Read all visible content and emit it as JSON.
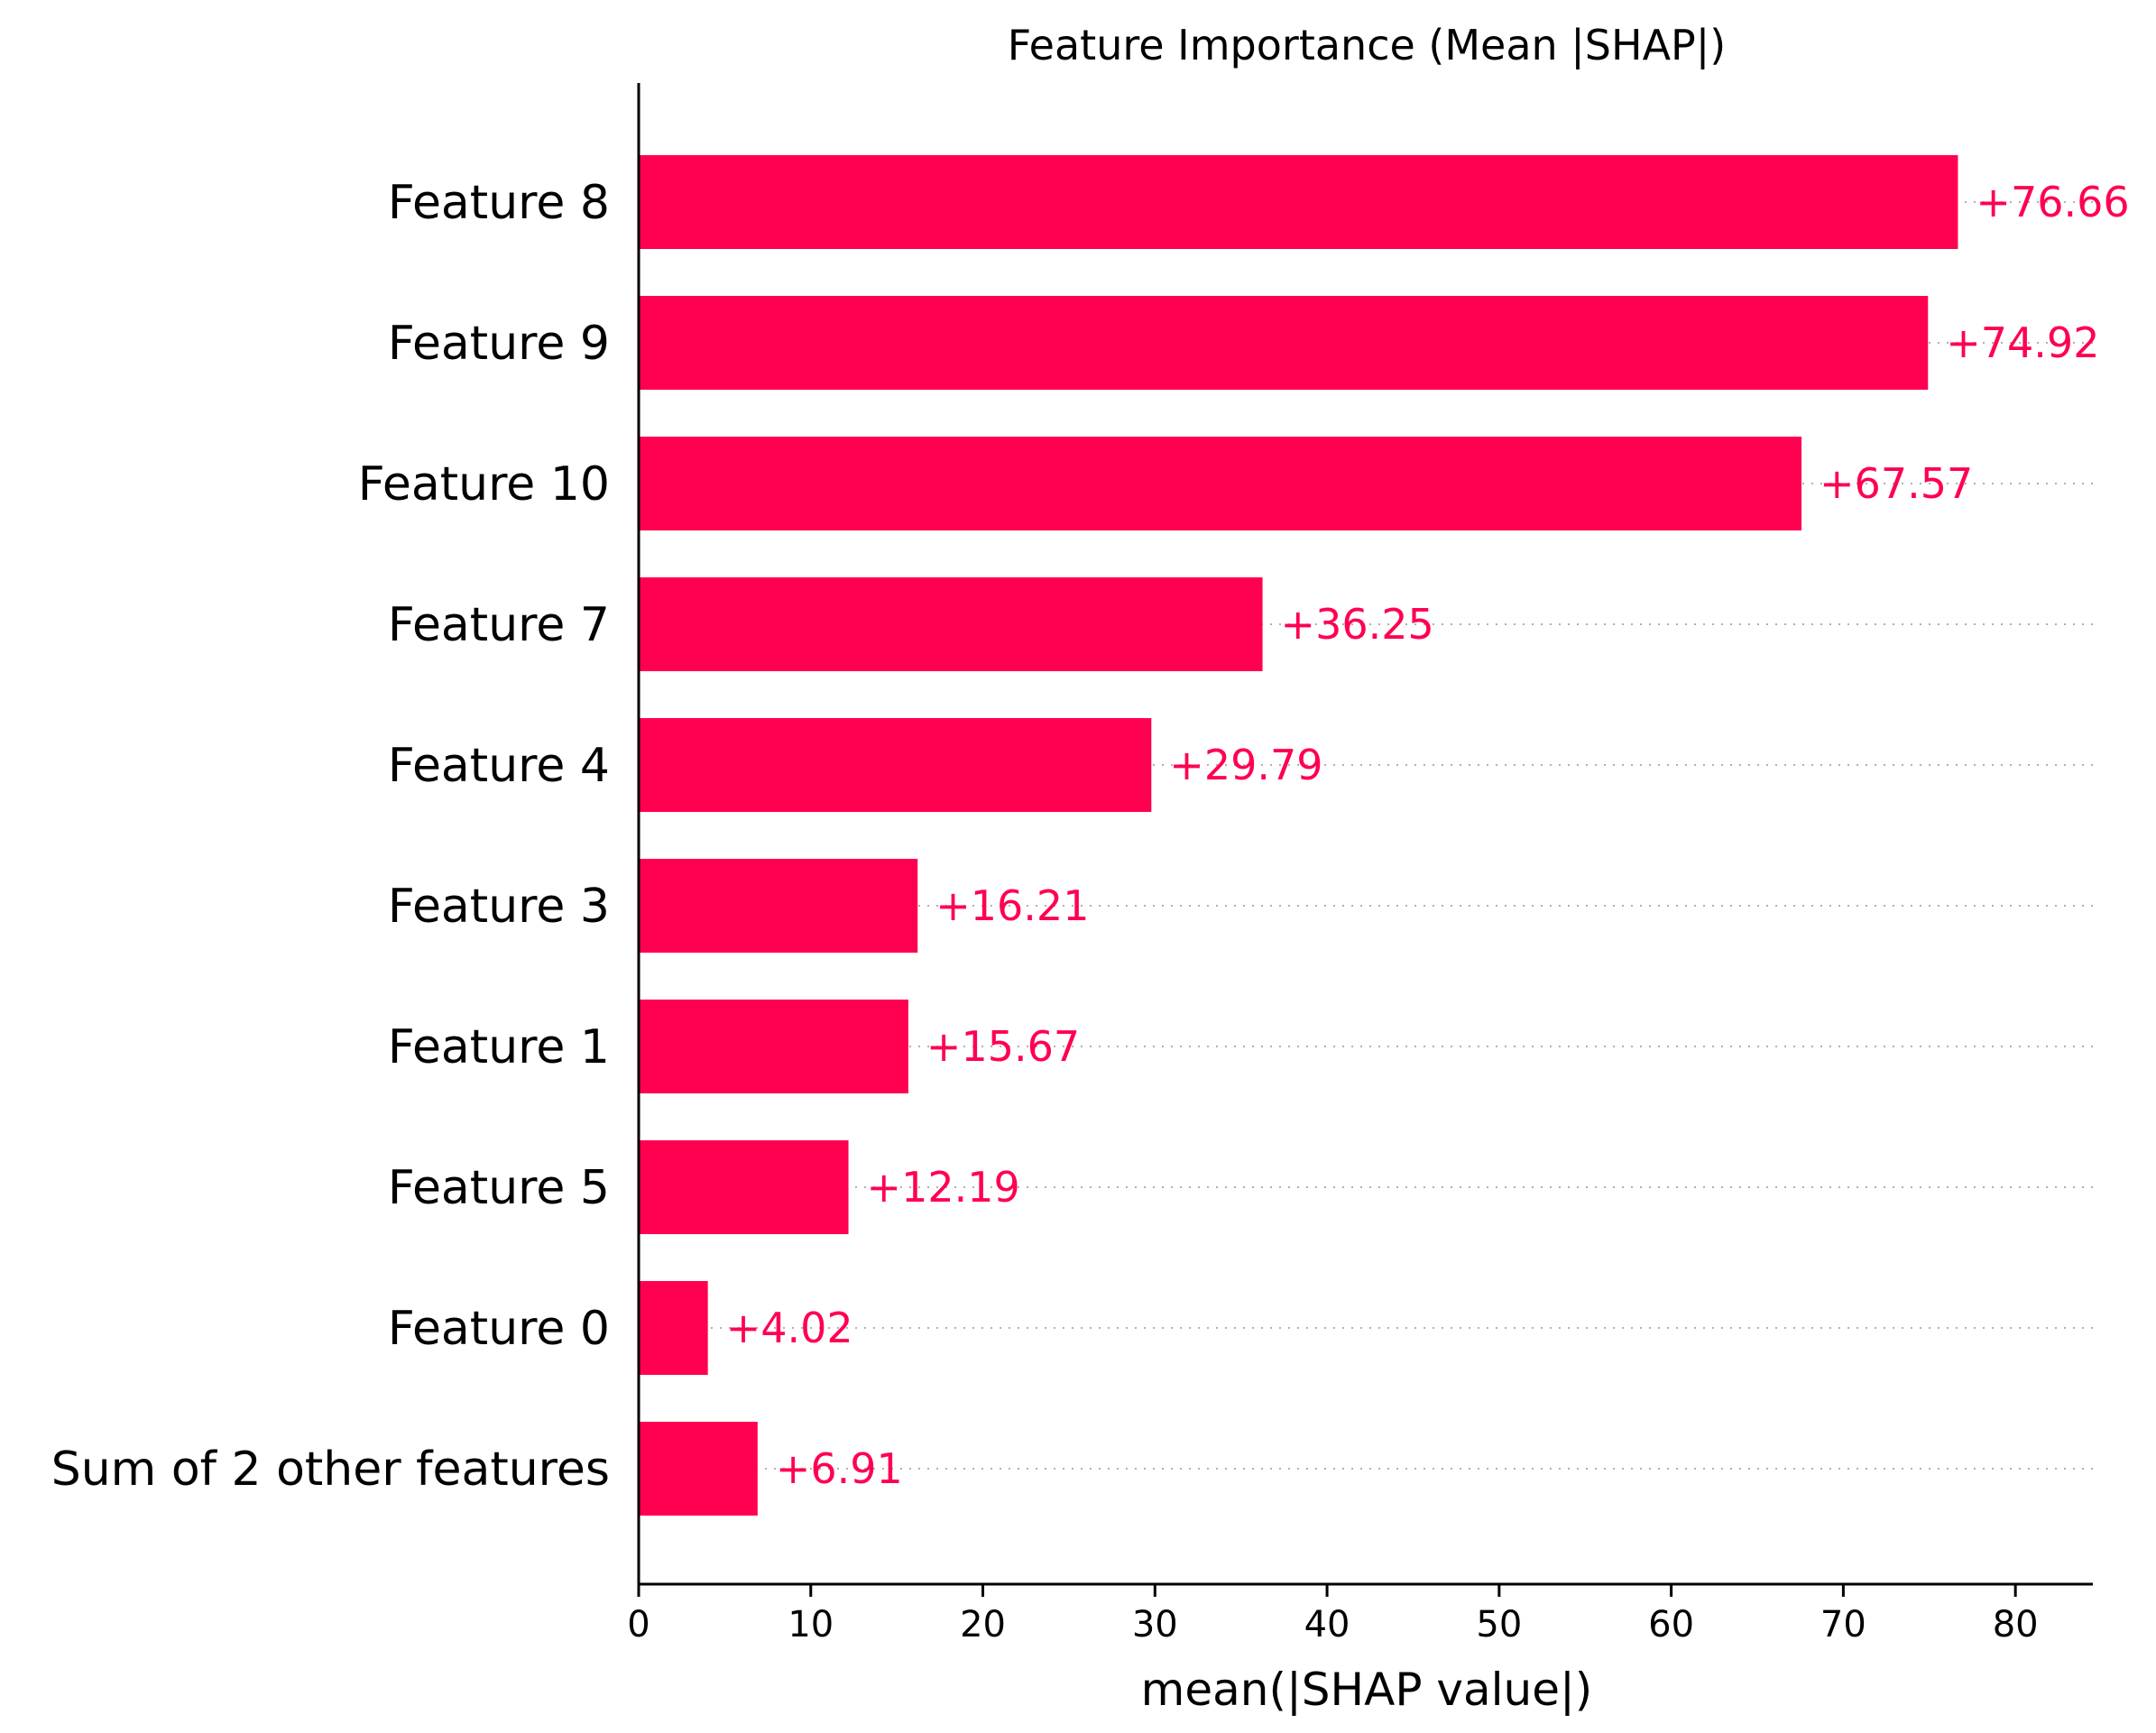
{
  "chart_data": {
    "type": "bar",
    "orientation": "horizontal",
    "title": "Feature Importance (Mean |SHAP|)",
    "xlabel": "mean(|SHAP value|)",
    "ylabel": "",
    "categories": [
      "Feature 8",
      "Feature 9",
      "Feature 10",
      "Feature 7",
      "Feature 4",
      "Feature 3",
      "Feature 1",
      "Feature 5",
      "Feature 0",
      "Sum of 2 other features"
    ],
    "values": [
      76.66,
      74.92,
      67.57,
      36.25,
      29.79,
      16.21,
      15.67,
      12.19,
      4.02,
      6.91
    ],
    "value_labels": [
      "+76.66",
      "+74.92",
      "+67.57",
      "+36.25",
      "+29.79",
      "+16.21",
      "+15.67",
      "+12.19",
      "+4.02",
      "+6.91"
    ],
    "xlim": [
      0,
      84.5
    ],
    "xticks": [
      0,
      10,
      20,
      30,
      40,
      50,
      60,
      70,
      80
    ],
    "xtick_labels": [
      "0",
      "10",
      "20",
      "30",
      "40",
      "50",
      "60",
      "70",
      "80"
    ],
    "bar_color": "#ff0051",
    "label_color": "#ff0051",
    "grid": false
  }
}
